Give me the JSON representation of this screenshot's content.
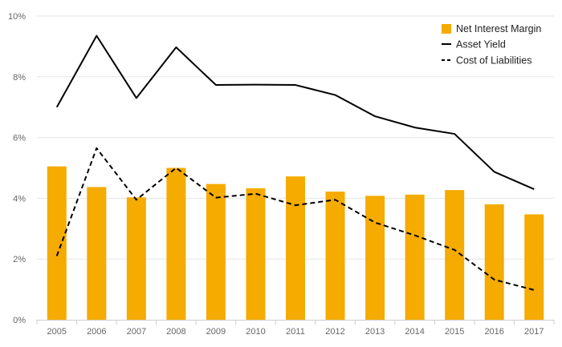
{
  "chart_data": {
    "type": "bar+line",
    "title": "",
    "xlabel": "",
    "ylabel": "",
    "categories": [
      "2005",
      "2006",
      "2007",
      "2008",
      "2009",
      "2010",
      "2011",
      "2012",
      "2013",
      "2014",
      "2015",
      "2016",
      "2017"
    ],
    "ylim": [
      0,
      10
    ],
    "y_ticks": [
      "0%",
      "2%",
      "4%",
      "6%",
      "8%",
      "10%"
    ],
    "y_tick_values": [
      0,
      2,
      4,
      6,
      8,
      10
    ],
    "grid": true,
    "legend_position": "top-right",
    "series": [
      {
        "name": "Net Interest Margin",
        "type": "bar",
        "color": "#f5ab00",
        "values": [
          5.05,
          4.37,
          4.03,
          5.0,
          4.47,
          4.33,
          4.72,
          4.22,
          4.08,
          4.12,
          4.27,
          3.8,
          3.47
        ]
      },
      {
        "name": "Asset Yield",
        "type": "line",
        "style": "solid",
        "color": "#000000",
        "values": [
          7.0,
          9.35,
          7.3,
          8.97,
          7.73,
          7.74,
          7.73,
          7.4,
          6.7,
          6.33,
          6.12,
          4.87,
          4.3
        ]
      },
      {
        "name": "Cost of Liabilities",
        "type": "line",
        "style": "dashed",
        "color": "#000000",
        "values": [
          2.1,
          5.65,
          3.95,
          5.0,
          4.02,
          4.15,
          3.77,
          3.95,
          3.2,
          2.78,
          2.3,
          1.32,
          0.98
        ]
      }
    ]
  }
}
